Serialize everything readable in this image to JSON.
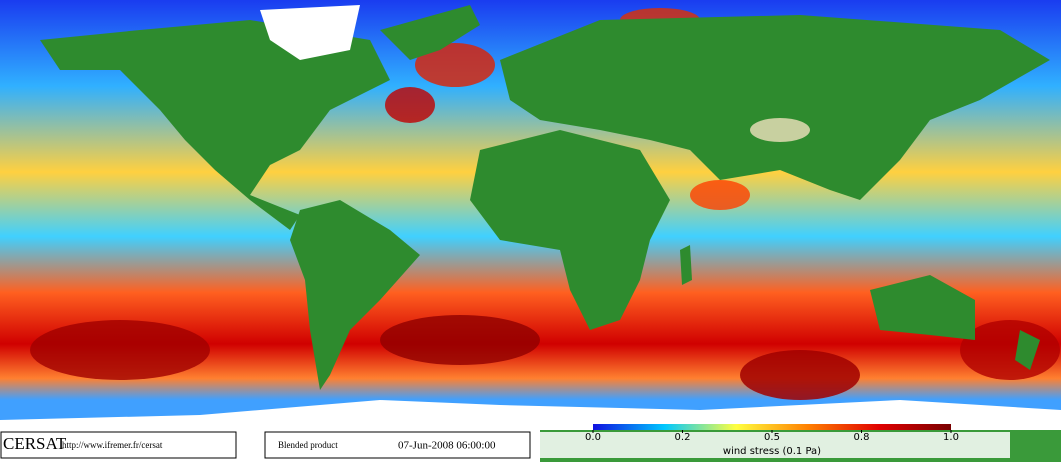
{
  "map": {
    "logo": "CERSAT",
    "url": "http://www.ifremer.fr/cersat",
    "product": "Blended product",
    "datetime": "07-Jun-2008 06:00:00"
  },
  "colorbar": {
    "label": "wind stress (0.1 Pa)",
    "ticks": [
      {
        "value": 0,
        "label": "0.0"
      },
      {
        "value": 0.2,
        "label": "0.2"
      },
      {
        "value": 0.5,
        "label": "0.5"
      },
      {
        "value": 0.8,
        "label": "0.8"
      },
      {
        "value": 1,
        "label": "1.0"
      }
    ],
    "colors": [
      "#1010e0",
      "#00c8ff",
      "#ffff40",
      "#ff8000",
      "#e00000",
      "#780000"
    ]
  }
}
